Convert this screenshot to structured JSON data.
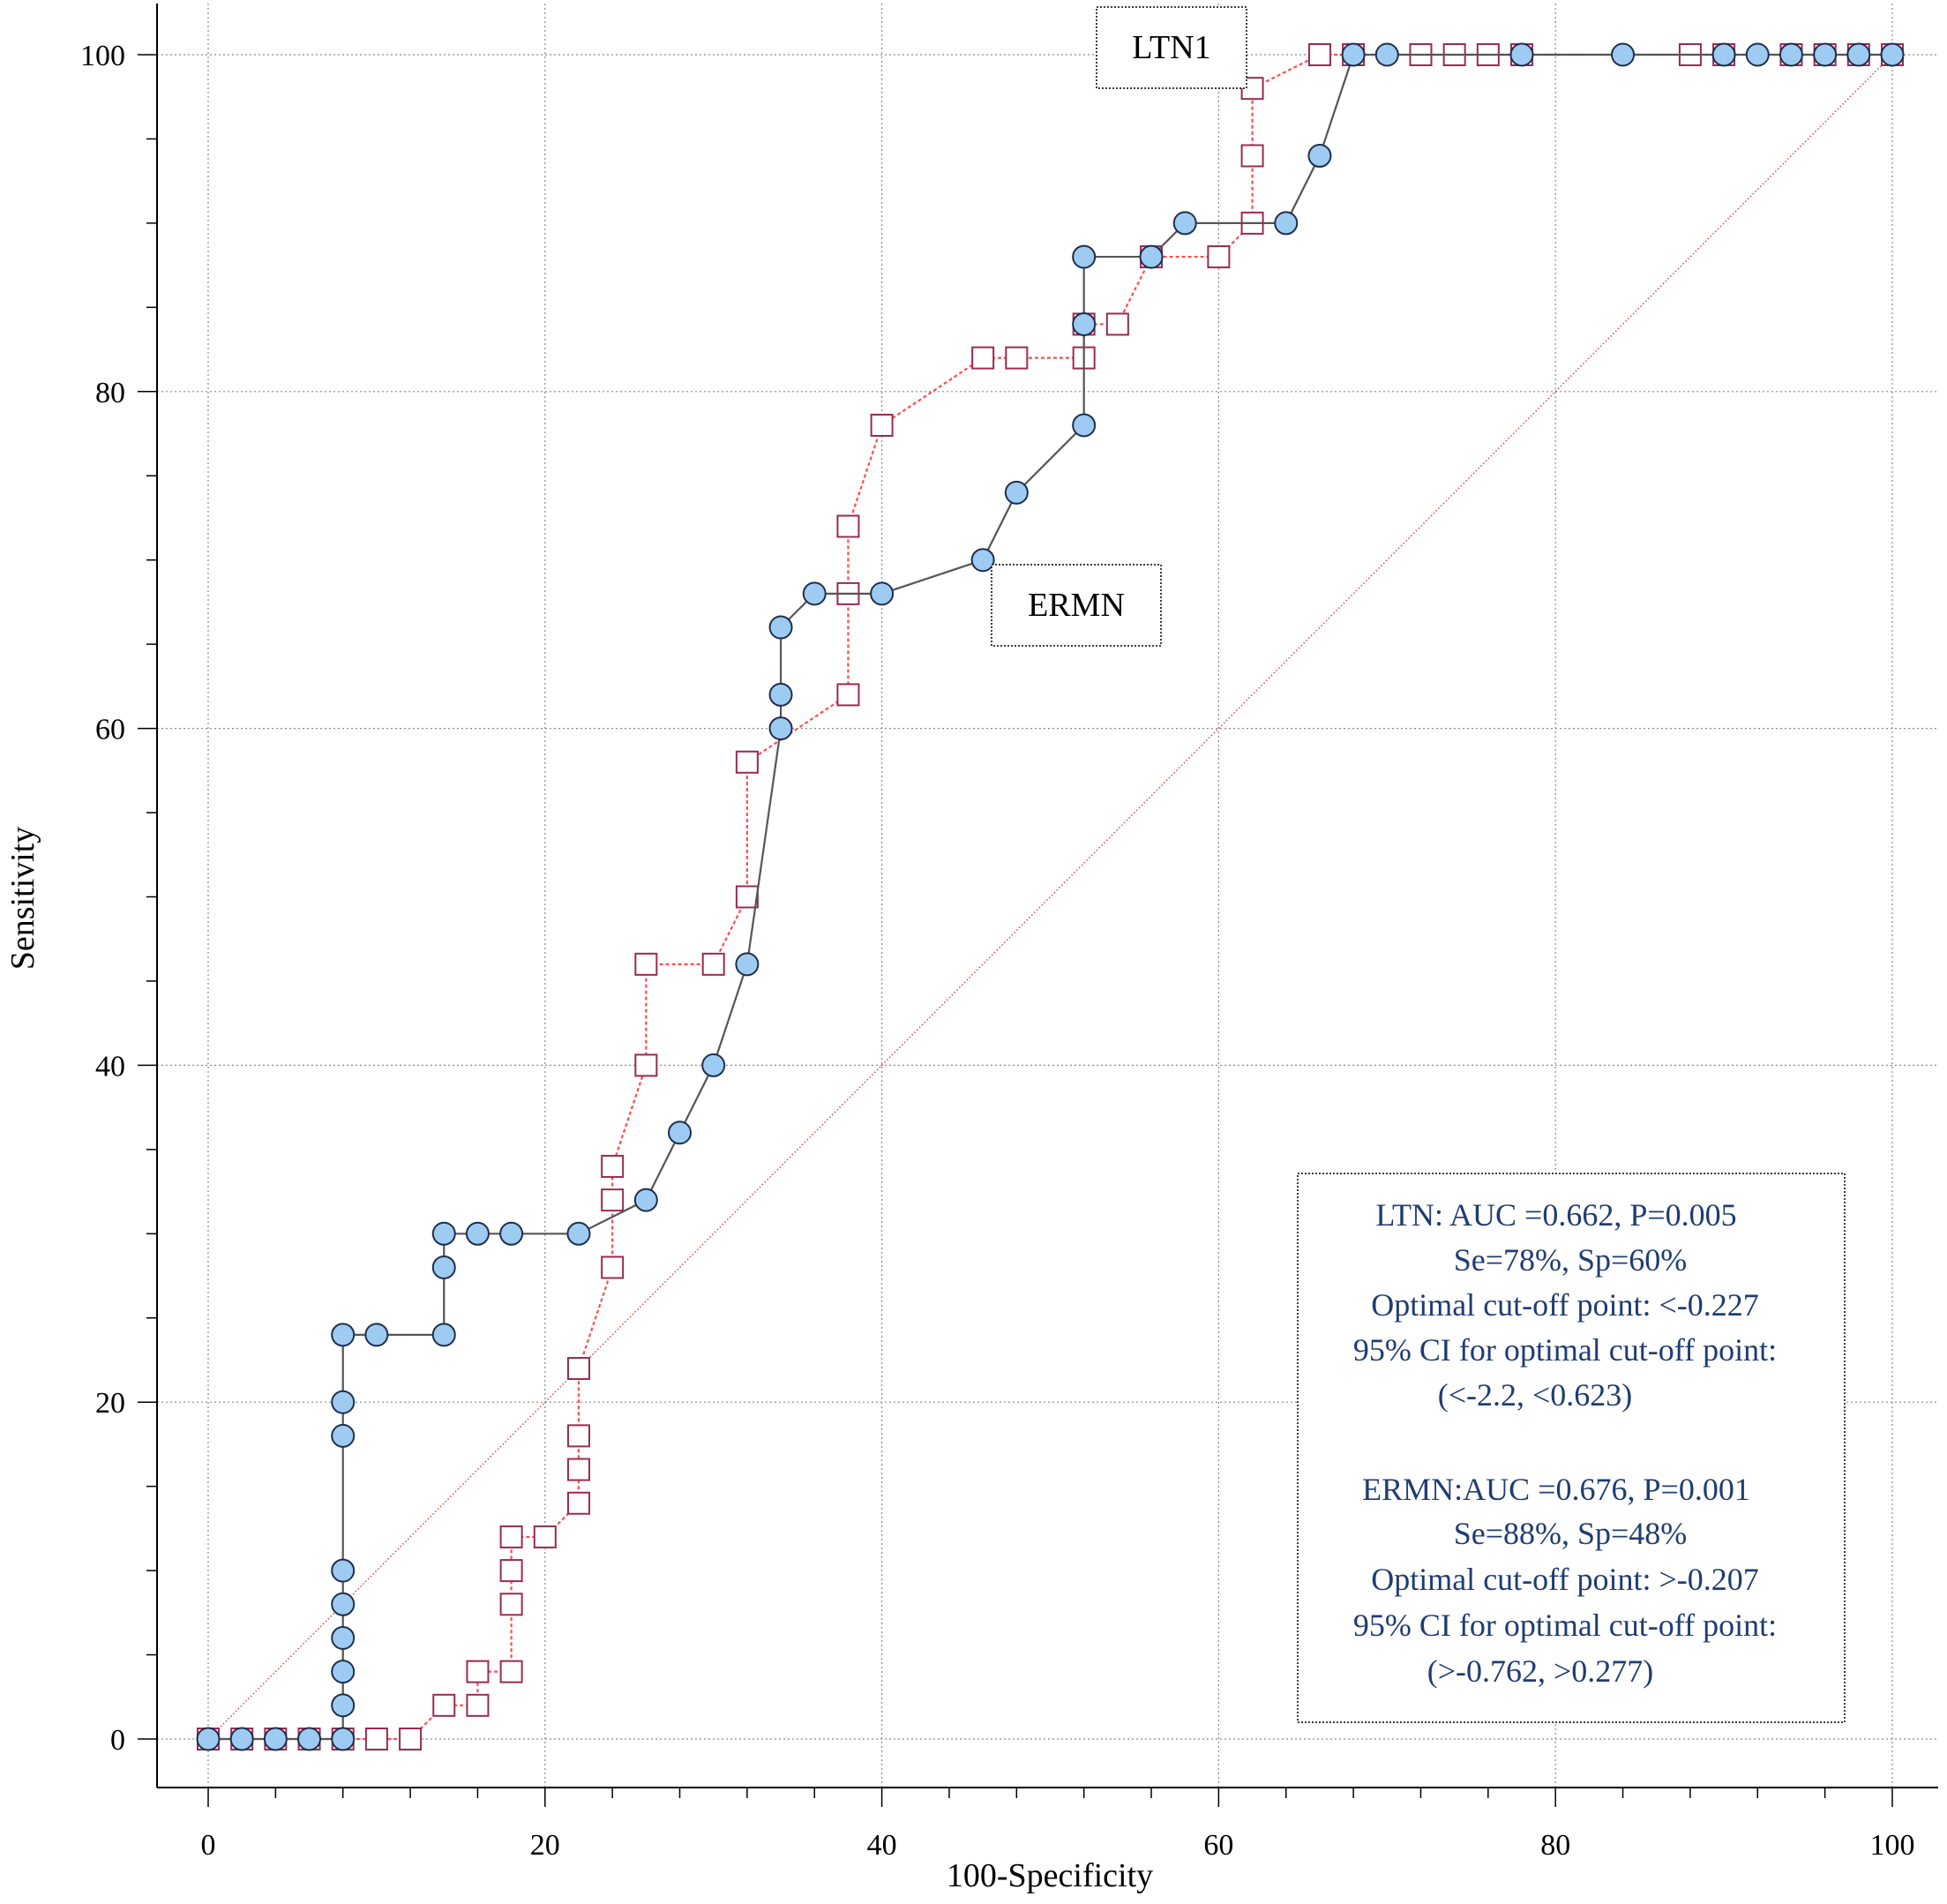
{
  "chart_data": {
    "type": "line",
    "xlabel": "100-Specificity",
    "ylabel": "Sensitivity",
    "xlim": [
      -3,
      103
    ],
    "ylim": [
      -3,
      103
    ],
    "xticks": [
      0,
      20,
      40,
      60,
      80,
      100
    ],
    "yticks": [
      0,
      20,
      40,
      60,
      80,
      100
    ],
    "grid": true,
    "reference_line": [
      [
        0,
        0
      ],
      [
        100,
        100
      ]
    ],
    "series": [
      {
        "name": "LTN1",
        "marker": "square",
        "line_style": "dotted",
        "line_color": "#ff4d4d",
        "marker_edge": "#9b2a52",
        "marker_fill": "#ffffff",
        "points": [
          [
            0,
            0
          ],
          [
            2,
            0
          ],
          [
            4,
            0
          ],
          [
            6,
            0
          ],
          [
            8,
            0
          ],
          [
            10,
            0
          ],
          [
            12,
            0
          ],
          [
            14,
            2
          ],
          [
            16,
            2
          ],
          [
            16,
            4
          ],
          [
            18,
            4
          ],
          [
            18,
            8
          ],
          [
            18,
            10
          ],
          [
            18,
            12
          ],
          [
            20,
            12
          ],
          [
            22,
            14
          ],
          [
            22,
            16
          ],
          [
            22,
            18
          ],
          [
            22,
            22
          ],
          [
            24,
            28
          ],
          [
            24,
            32
          ],
          [
            24,
            34
          ],
          [
            26,
            40
          ],
          [
            26,
            46
          ],
          [
            30,
            46
          ],
          [
            32,
            50
          ],
          [
            32,
            58
          ],
          [
            38,
            62
          ],
          [
            38,
            68
          ],
          [
            38,
            72
          ],
          [
            40,
            78
          ],
          [
            46,
            82
          ],
          [
            48,
            82
          ],
          [
            52,
            82
          ],
          [
            52,
            84
          ],
          [
            54,
            84
          ],
          [
            56,
            88
          ],
          [
            60,
            88
          ],
          [
            62,
            90
          ],
          [
            62,
            94
          ],
          [
            62,
            98
          ],
          [
            66,
            100
          ],
          [
            68,
            100
          ],
          [
            72,
            100
          ],
          [
            74,
            100
          ],
          [
            76,
            100
          ],
          [
            78,
            100
          ],
          [
            88,
            100
          ],
          [
            90,
            100
          ],
          [
            94,
            100
          ],
          [
            96,
            100
          ],
          [
            98,
            100
          ],
          [
            100,
            100
          ]
        ]
      },
      {
        "name": "ERMN",
        "marker": "circle",
        "line_style": "solid",
        "line_color": "#555555",
        "marker_edge": "#1f2f4a",
        "marker_fill": "#9ecbf2",
        "points": [
          [
            0,
            0
          ],
          [
            2,
            0
          ],
          [
            4,
            0
          ],
          [
            6,
            0
          ],
          [
            8,
            0
          ],
          [
            8,
            2
          ],
          [
            8,
            4
          ],
          [
            8,
            6
          ],
          [
            8,
            8
          ],
          [
            8,
            10
          ],
          [
            8,
            18
          ],
          [
            8,
            20
          ],
          [
            8,
            24
          ],
          [
            10,
            24
          ],
          [
            14,
            24
          ],
          [
            14,
            28
          ],
          [
            14,
            30
          ],
          [
            16,
            30
          ],
          [
            18,
            30
          ],
          [
            22,
            30
          ],
          [
            26,
            32
          ],
          [
            28,
            36
          ],
          [
            30,
            40
          ],
          [
            32,
            46
          ],
          [
            34,
            60
          ],
          [
            34,
            62
          ],
          [
            34,
            66
          ],
          [
            36,
            68
          ],
          [
            40,
            68
          ],
          [
            46,
            70
          ],
          [
            48,
            74
          ],
          [
            52,
            78
          ],
          [
            52,
            84
          ],
          [
            52,
            88
          ],
          [
            56,
            88
          ],
          [
            58,
            90
          ],
          [
            64,
            90
          ],
          [
            66,
            94
          ],
          [
            68,
            100
          ],
          [
            70,
            100
          ],
          [
            78,
            100
          ],
          [
            84,
            100
          ],
          [
            90,
            100
          ],
          [
            92,
            100
          ],
          [
            94,
            100
          ],
          [
            96,
            100
          ],
          [
            98,
            100
          ],
          [
            100,
            100
          ]
        ]
      }
    ]
  },
  "callouts": {
    "ltn1": "LTN1",
    "ermn": "ERMN"
  },
  "stats_box": {
    "lines": [
      "LTN: AUC =0.662, P=0.005",
      "Se=78%, Sp=60%",
      "Optimal cut-off point: <-0.227",
      "95% CI for optimal cut-off point:",
      "(<-2.2, <0.623)",
      "",
      "ERMN:AUC =0.676, P=0.001",
      "Se=88%, Sp=48%",
      "Optimal cut-off point: >-0.207",
      "95% CI for optimal cut-off point:",
      "(>-0.762, >0.277)"
    ]
  }
}
